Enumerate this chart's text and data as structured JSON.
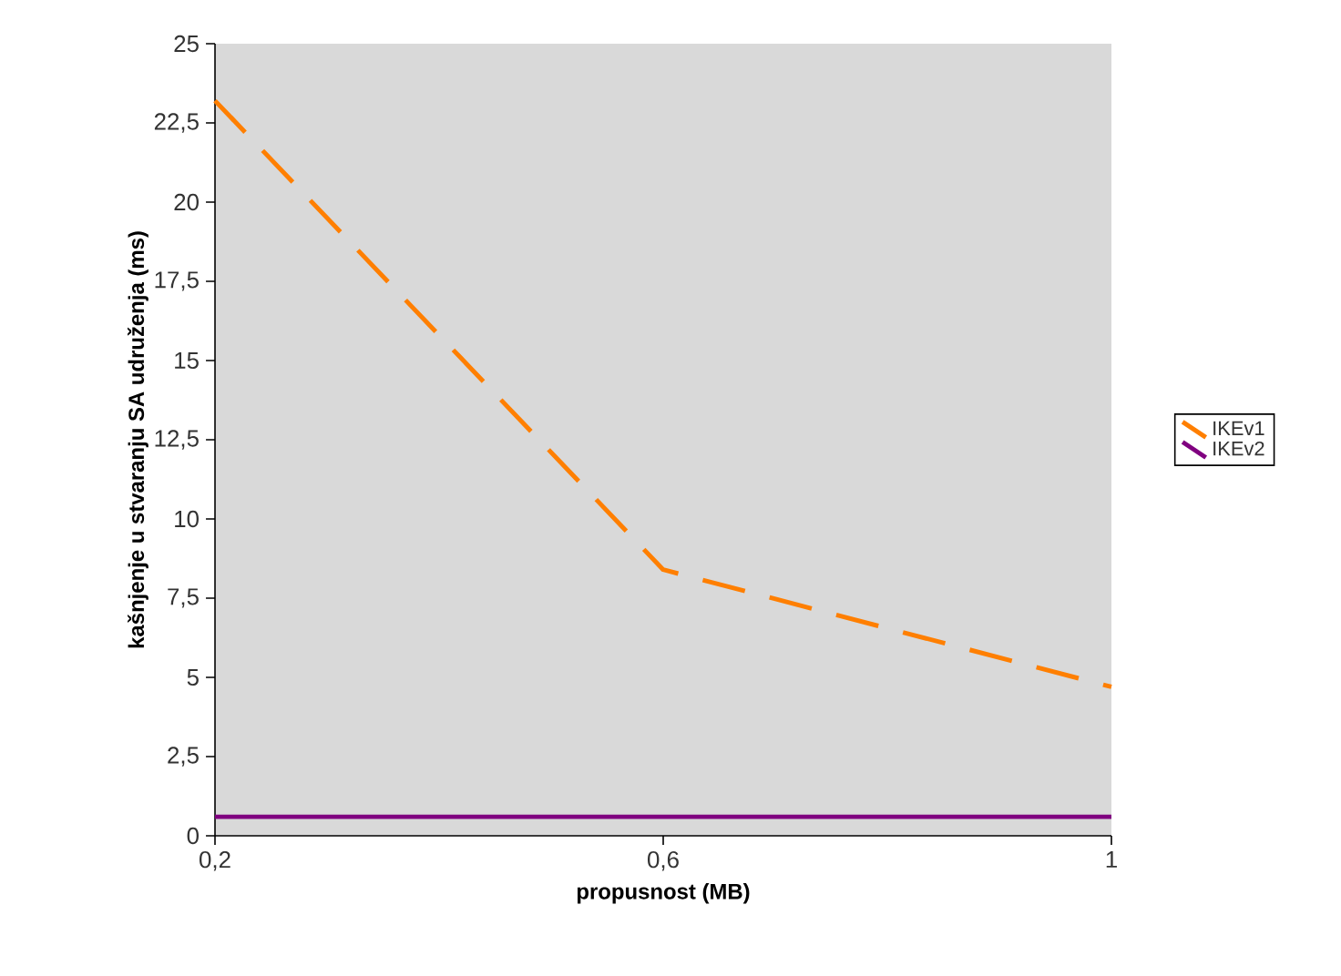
{
  "chart_data": {
    "type": "line",
    "xlabel": "propusnost (MB)",
    "ylabel": "kašnjenje u stvaranju SA udruženja (ms)",
    "x": [
      0.2,
      0.6,
      1
    ],
    "series": [
      {
        "name": "IKEv1",
        "color": "#ff7f00",
        "values": [
          23.2,
          8.4,
          4.7
        ],
        "line_style": "dashed"
      },
      {
        "name": "IKEv2",
        "color": "#800080",
        "values": [
          0.6,
          0.6,
          0.6
        ],
        "line_style": "solid"
      }
    ],
    "xlim": [
      0.2,
      1
    ],
    "ylim": [
      0,
      25
    ],
    "xticks": [
      {
        "value": 0.2,
        "label": "0,2"
      },
      {
        "value": 0.6,
        "label": "0,6"
      },
      1
    ],
    "yticks": [
      0,
      {
        "value": 2.5,
        "label": "2,5"
      },
      5,
      {
        "value": 7.5,
        "label": "7,5"
      },
      10,
      {
        "value": 12.5,
        "label": "12,5"
      },
      15,
      {
        "value": 17.5,
        "label": "17,5"
      },
      20,
      {
        "value": 22.5,
        "label": "22,5"
      },
      25
    ],
    "grid": false,
    "legend": "right",
    "marker": "none"
  }
}
